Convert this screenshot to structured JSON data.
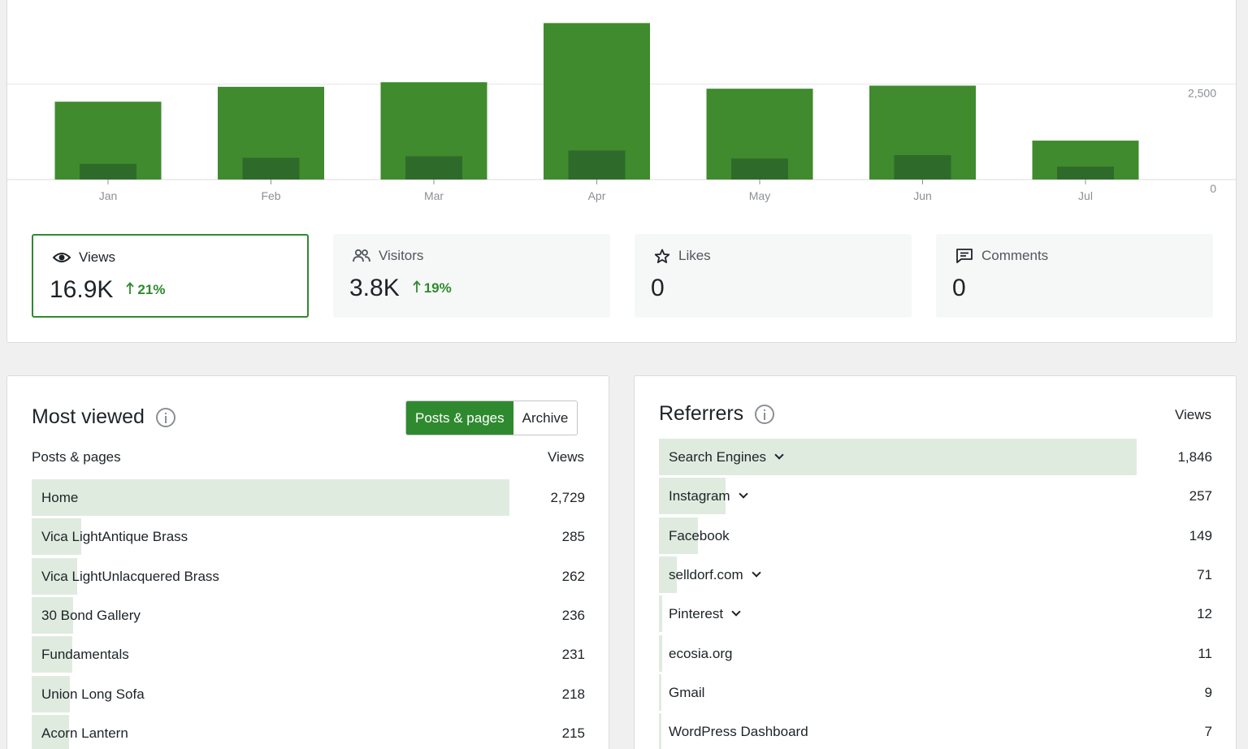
{
  "chart_data": {
    "type": "bar",
    "categories": [
      "Jan",
      "Feb",
      "Mar",
      "Apr",
      "May",
      "Jun",
      "Jul"
    ],
    "series": [
      {
        "values": [
          2040,
          2430,
          2550,
          4100,
          2380,
          2460,
          1020
        ]
      },
      {
        "values": [
          410,
          570,
          610,
          760,
          550,
          640,
          340
        ]
      }
    ],
    "y_ticks": [
      "2,500",
      "0"
    ],
    "ylim": [
      0,
      4300
    ],
    "grid": true,
    "colors": {
      "primary": "#3f8b2e",
      "secondary": "#2e6b2b"
    }
  },
  "stats": [
    {
      "icon": "eye-icon",
      "label": "Views",
      "value": "16.9K",
      "delta": "21%",
      "active": true
    },
    {
      "icon": "people-icon",
      "label": "Visitors",
      "value": "3.8K",
      "delta": "19%",
      "active": false
    },
    {
      "icon": "star-icon",
      "label": "Likes",
      "value": "0",
      "delta": "",
      "active": false
    },
    {
      "icon": "comment-icon",
      "label": "Comments",
      "value": "0",
      "delta": "",
      "active": false
    }
  ],
  "most_viewed": {
    "title": "Most viewed",
    "toggle": [
      "Posts & pages",
      "Archive"
    ],
    "col_left": "Posts & pages",
    "col_right": "Views",
    "rows": [
      {
        "name": "Home",
        "views": "2,729",
        "pct": 1.0
      },
      {
        "name": "Vica LightAntique Brass",
        "views": "285",
        "pct": 0.104
      },
      {
        "name": "Vica LightUnlacquered Brass",
        "views": "262",
        "pct": 0.096
      },
      {
        "name": "30 Bond Gallery",
        "views": "236",
        "pct": 0.086
      },
      {
        "name": "Fundamentals",
        "views": "231",
        "pct": 0.085
      },
      {
        "name": "Union Long Sofa",
        "views": "218",
        "pct": 0.08
      },
      {
        "name": "Acorn Lantern",
        "views": "215",
        "pct": 0.079
      }
    ]
  },
  "referrers": {
    "title": "Referrers",
    "col_right": "Views",
    "rows": [
      {
        "name": "Search Engines",
        "views": "1,846",
        "pct": 1.0,
        "expandable": true
      },
      {
        "name": "Instagram",
        "views": "257",
        "pct": 0.139,
        "expandable": true
      },
      {
        "name": "Facebook",
        "views": "149",
        "pct": 0.081,
        "expandable": false
      },
      {
        "name": "selldorf.com",
        "views": "71",
        "pct": 0.038,
        "expandable": true
      },
      {
        "name": "Pinterest",
        "views": "12",
        "pct": 0.006,
        "expandable": true
      },
      {
        "name": "ecosia.org",
        "views": "11",
        "pct": 0.006,
        "expandable": false
      },
      {
        "name": "Gmail",
        "views": "9",
        "pct": 0.005,
        "expandable": false
      },
      {
        "name": "WordPress Dashboard",
        "views": "7",
        "pct": 0.004,
        "expandable": false
      }
    ]
  }
}
